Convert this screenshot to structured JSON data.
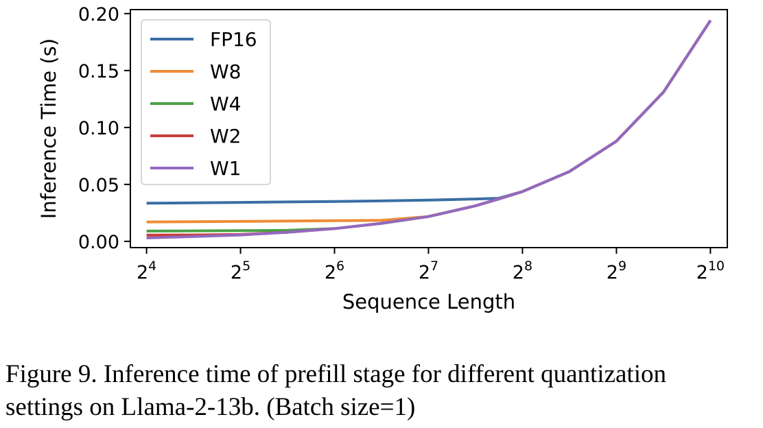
{
  "chart_data": {
    "type": "line",
    "xlabel": "Sequence Length",
    "ylabel": "Inference Time (s)",
    "x_scale": "log2",
    "x_ticks": [
      16,
      32,
      64,
      128,
      256,
      512,
      1024
    ],
    "x_tick_labels": [
      {
        "base": "2",
        "exp": "4"
      },
      {
        "base": "2",
        "exp": "5"
      },
      {
        "base": "2",
        "exp": "6"
      },
      {
        "base": "2",
        "exp": "7"
      },
      {
        "base": "2",
        "exp": "8"
      },
      {
        "base": "2",
        "exp": "9"
      },
      {
        "base": "2",
        "exp": "10"
      }
    ],
    "y_ticks": [
      0.0,
      0.05,
      0.1,
      0.15,
      0.2
    ],
    "y_tick_labels": [
      "0.00",
      "0.05",
      "0.10",
      "0.15",
      "0.20"
    ],
    "xlim": [
      14.2,
      1160
    ],
    "ylim": [
      -0.0055,
      0.2035
    ],
    "grid": false,
    "legend_position": "top-left",
    "x": [
      16,
      22.6,
      32,
      45.3,
      64,
      90.5,
      128,
      181,
      215,
      256,
      362,
      512,
      724,
      1024
    ],
    "series": [
      {
        "name": "FP16",
        "color": "#3a6ea5",
        "values": [
          0.0335,
          0.0338,
          0.0342,
          0.0346,
          0.035,
          0.0355,
          0.0362,
          0.0372,
          0.0378,
          0.0437,
          0.0613,
          0.088,
          0.131,
          0.194
        ]
      },
      {
        "name": "W8",
        "color": "#ef8b36",
        "values": [
          0.017,
          0.0172,
          0.0175,
          0.0178,
          0.0181,
          0.0185,
          0.0218,
          0.0312,
          0.0372,
          0.0437,
          0.0613,
          0.088,
          0.131,
          0.194
        ]
      },
      {
        "name": "W4",
        "color": "#4aa246",
        "values": [
          0.009,
          0.0092,
          0.0094,
          0.0097,
          0.0112,
          0.0158,
          0.0218,
          0.0312,
          0.0372,
          0.0437,
          0.0613,
          0.088,
          0.131,
          0.194
        ]
      },
      {
        "name": "W2",
        "color": "#c63d35",
        "values": [
          0.0055,
          0.0056,
          0.006,
          0.008,
          0.0112,
          0.0158,
          0.0218,
          0.0312,
          0.0372,
          0.0437,
          0.0613,
          0.088,
          0.131,
          0.194
        ]
      },
      {
        "name": "W1",
        "color": "#9369c0",
        "values": [
          0.003,
          0.0042,
          0.0056,
          0.008,
          0.0112,
          0.0158,
          0.0218,
          0.0312,
          0.0372,
          0.0437,
          0.0613,
          0.088,
          0.131,
          0.194
        ]
      }
    ]
  },
  "caption": {
    "line1": "Figure 9. Inference time of prefill stage for different quantization",
    "line2": "settings on Llama-2-13b. (Batch size=1)"
  }
}
